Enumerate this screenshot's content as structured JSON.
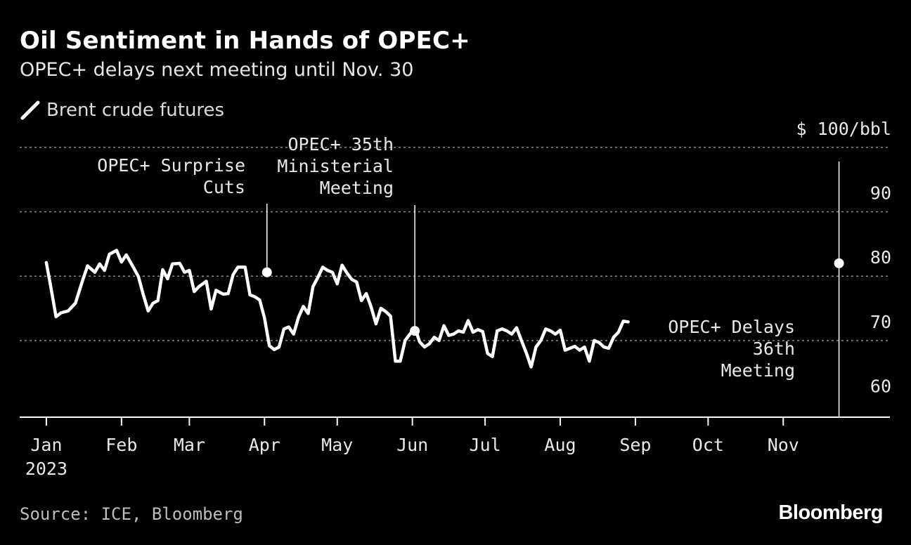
{
  "header": {
    "title": "Oil Sentiment in Hands of OPEC+",
    "subtitle": "OPEC+ delays next meeting until Nov. 30"
  },
  "legend": {
    "label": "Brent crude futures"
  },
  "footer": {
    "source": "Source: ICE, Bloomberg",
    "brand": "Bloomberg"
  },
  "colors": {
    "background": "#000000",
    "line": "#ffffff",
    "grid": "#8c8c8c",
    "axis": "#ffffff"
  },
  "chart_data": {
    "type": "line",
    "title": "Oil Sentiment in Hands of OPEC+",
    "subtitle": "OPEC+ delays next meeting until Nov. 30",
    "ylabel": "$ 100/bbl",
    "ylim": [
      58.1,
      97.8
    ],
    "yticks": [
      60,
      70,
      80,
      90,
      100
    ],
    "ytick_labels": [
      "60",
      "70",
      "80",
      "90",
      "$ 100/bbl"
    ],
    "xlim": [
      -11,
      348
    ],
    "xticks": [
      {
        "day": 0,
        "label": "Jan"
      },
      {
        "day": 31,
        "label": "Feb"
      },
      {
        "day": 59,
        "label": "Mar"
      },
      {
        "day": 90,
        "label": "Apr"
      },
      {
        "day": 120,
        "label": "May"
      },
      {
        "day": 151,
        "label": "Jun"
      },
      {
        "day": 181,
        "label": "Jul"
      },
      {
        "day": 212,
        "label": "Aug"
      },
      {
        "day": 243,
        "label": "Sep"
      },
      {
        "day": 273,
        "label": "Oct"
      },
      {
        "day": 304,
        "label": "Nov"
      }
    ],
    "year_label": "2023",
    "grid": true,
    "legend_position": "top-left",
    "series": [
      {
        "name": "Brent crude futures",
        "points": [
          [
            0,
            82.1
          ],
          [
            2,
            78.0
          ],
          [
            4,
            73.7
          ],
          [
            6,
            74.3
          ],
          [
            9,
            74.6
          ],
          [
            12,
            75.8
          ],
          [
            15,
            79.4
          ],
          [
            17,
            81.6
          ],
          [
            20,
            80.6
          ],
          [
            22,
            81.9
          ],
          [
            24,
            80.9
          ],
          [
            26,
            83.4
          ],
          [
            29,
            84.0
          ],
          [
            31,
            82.2
          ],
          [
            33,
            83.3
          ],
          [
            36,
            81.3
          ],
          [
            38,
            79.9
          ],
          [
            40,
            77.1
          ],
          [
            42,
            74.6
          ],
          [
            44,
            75.8
          ],
          [
            46,
            76.2
          ],
          [
            48,
            81.0
          ],
          [
            50,
            79.6
          ],
          [
            52,
            81.9
          ],
          [
            55,
            82.0
          ],
          [
            57,
            80.6
          ],
          [
            59,
            80.9
          ],
          [
            61,
            77.6
          ],
          [
            63,
            78.4
          ],
          [
            66,
            79.2
          ],
          [
            68,
            74.9
          ],
          [
            70,
            77.8
          ],
          [
            73,
            77.2
          ],
          [
            75,
            77.3
          ],
          [
            77,
            80.2
          ],
          [
            79,
            81.4
          ],
          [
            82,
            81.4
          ],
          [
            84,
            77.1
          ],
          [
            86,
            76.8
          ],
          [
            88,
            76.3
          ],
          [
            90,
            73.5
          ],
          [
            92,
            69.2
          ],
          [
            94,
            68.6
          ],
          [
            96,
            69.0
          ],
          [
            98,
            71.8
          ],
          [
            100,
            72.1
          ],
          [
            102,
            71.0
          ],
          [
            104,
            73.6
          ],
          [
            106,
            75.3
          ],
          [
            108,
            74.2
          ],
          [
            110,
            78.4
          ],
          [
            112,
            79.8
          ],
          [
            114,
            81.4
          ],
          [
            116,
            80.9
          ],
          [
            118,
            80.6
          ],
          [
            120,
            78.8
          ],
          [
            122,
            81.7
          ],
          [
            124,
            80.5
          ],
          [
            126,
            79.5
          ],
          [
            128,
            79.1
          ],
          [
            130,
            76.2
          ],
          [
            132,
            77.3
          ],
          [
            134,
            75.2
          ],
          [
            136,
            72.6
          ],
          [
            138,
            75.0
          ],
          [
            140,
            74.5
          ],
          [
            142,
            73.8
          ],
          [
            144,
            66.8
          ],
          [
            146,
            66.8
          ],
          [
            148,
            70.0
          ],
          [
            150,
            71.0
          ],
          [
            152,
            72.0
          ],
          [
            154,
            69.8
          ],
          [
            156,
            69.0
          ],
          [
            158,
            69.5
          ],
          [
            160,
            70.5
          ],
          [
            162,
            70.0
          ],
          [
            164,
            72.3
          ],
          [
            166,
            70.8
          ],
          [
            168,
            71.0
          ],
          [
            170,
            71.5
          ],
          [
            172,
            71.3
          ],
          [
            174,
            73.1
          ],
          [
            176,
            71.3
          ],
          [
            178,
            71.7
          ],
          [
            180,
            71.4
          ],
          [
            182,
            68.0
          ],
          [
            184,
            67.5
          ],
          [
            186,
            71.5
          ],
          [
            188,
            71.8
          ],
          [
            190,
            71.5
          ],
          [
            192,
            71.0
          ],
          [
            194,
            72.0
          ],
          [
            196,
            70.0
          ],
          [
            198,
            68.1
          ],
          [
            200,
            65.9
          ],
          [
            202,
            69.0
          ],
          [
            204,
            70.0
          ],
          [
            206,
            71.8
          ],
          [
            208,
            71.5
          ],
          [
            210,
            71.0
          ],
          [
            212,
            71.6
          ],
          [
            214,
            68.5
          ],
          [
            216,
            68.8
          ],
          [
            218,
            69.1
          ],
          [
            220,
            68.5
          ],
          [
            222,
            69.0
          ],
          [
            224,
            66.8
          ],
          [
            226,
            70.0
          ],
          [
            228,
            69.7
          ],
          [
            230,
            69.0
          ],
          [
            232,
            68.8
          ],
          [
            234,
            70.5
          ],
          [
            236,
            71.3
          ],
          [
            238,
            73.0
          ],
          [
            240,
            72.9
          ]
        ]
      }
    ],
    "annotations": [
      {
        "text": "OPEC+ Surprise Cuts",
        "lines": [
          "OPEC+ Surprise",
          "Cuts"
        ],
        "x": 91,
        "y": 80.6
      },
      {
        "text": "OPEC+ 35th Ministerial Meeting",
        "lines": [
          "OPEC+ 35th",
          "Ministerial",
          "Meeting"
        ],
        "x": 152,
        "y": 71.5
      },
      {
        "text": "OPEC+ Delays 36th Meeting",
        "lines": [
          "OPEC+ Delays",
          "36th",
          "Meeting"
        ],
        "x": 327,
        "y": 82.0
      }
    ]
  }
}
